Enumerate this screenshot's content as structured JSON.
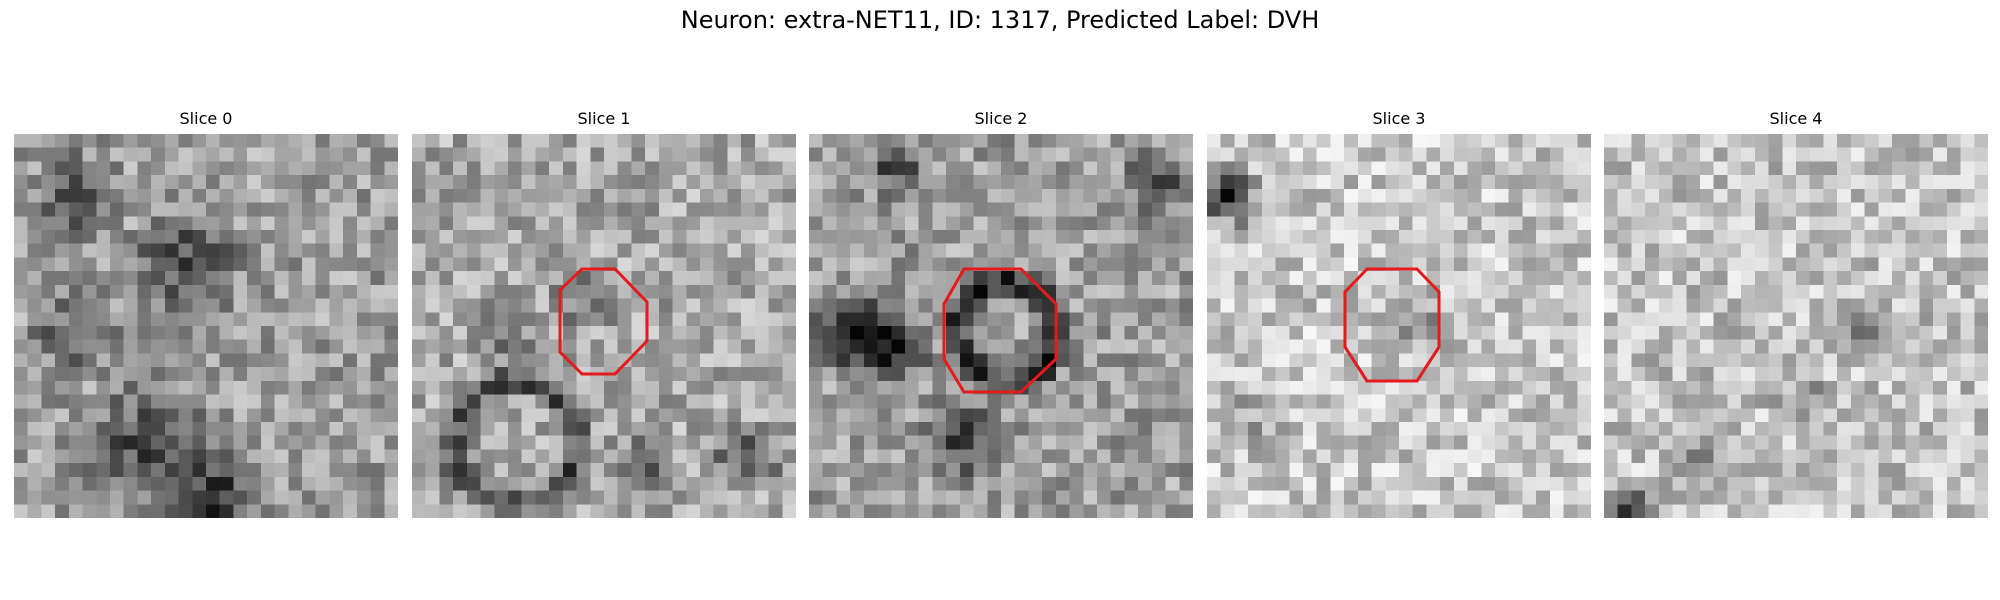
{
  "figure": {
    "title": "Neuron: extra-NET11, ID: 1317, Predicted Label: DVH"
  },
  "slices": [
    {
      "label": "Slice 0",
      "has_roi": false
    },
    {
      "label": "Slice 1",
      "has_roi": true
    },
    {
      "label": "Slice 2",
      "has_roi": true
    },
    {
      "label": "Slice 3",
      "has_roi": true
    },
    {
      "label": "Slice 4",
      "has_roi": false
    }
  ],
  "roi": {
    "shape": "octagon",
    "color": "#e41a1c"
  },
  "colors": {
    "colormap": "grayscale",
    "background": "#ffffff"
  }
}
